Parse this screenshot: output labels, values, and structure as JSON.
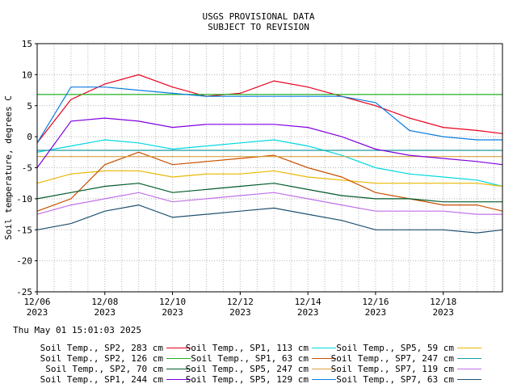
{
  "header": {
    "line1": "USGS PROVISIONAL DATA",
    "line2": "SUBJECT TO REVISION"
  },
  "timestamp": "Thu May 01 15:01:03 2025",
  "chart_data": {
    "type": "line",
    "ylabel": "Soil temperature, degrees C",
    "ylim": [
      -25,
      15
    ],
    "yticks": [
      -25,
      -20,
      -15,
      -10,
      -5,
      0,
      5,
      10,
      15
    ],
    "xlim": [
      "2023-12-06",
      "2023-12-19T18:00"
    ],
    "xticks": [
      {
        "date": "2023-12-06",
        "label1": "12/06",
        "label2": "2023"
      },
      {
        "date": "2023-12-08",
        "label1": "12/08",
        "label2": "2023"
      },
      {
        "date": "2023-12-10",
        "label1": "12/10",
        "label2": "2023"
      },
      {
        "date": "2023-12-12",
        "label1": "12/12",
        "label2": "2023"
      },
      {
        "date": "2023-12-14",
        "label1": "12/14",
        "label2": "2023"
      },
      {
        "date": "2023-12-16",
        "label1": "12/16",
        "label2": "2023"
      },
      {
        "date": "2023-12-18",
        "label1": "12/18",
        "label2": "2023"
      }
    ],
    "grid": true,
    "legend_position": "bottom",
    "series": [
      {
        "name": "Soil Temp., SP2, 283 cm",
        "color": "#e8001c",
        "x": [
          "2023-12-06",
          "2023-12-07",
          "2023-12-08",
          "2023-12-09",
          "2023-12-10",
          "2023-12-11",
          "2023-12-12",
          "2023-12-13",
          "2023-12-14",
          "2023-12-15",
          "2023-12-16",
          "2023-12-17",
          "2023-12-18",
          "2023-12-19",
          "2023-12-19T18:00"
        ],
        "values": [
          -1,
          6,
          8.5,
          10,
          8,
          6.5,
          7,
          9,
          8,
          6.5,
          5,
          3,
          1.5,
          1,
          0.5
        ]
      },
      {
        "name": "Soil Temp., SP1, 113 cm",
        "color": "#00d8e0",
        "x": [
          "2023-12-06",
          "2023-12-07",
          "2023-12-08",
          "2023-12-09",
          "2023-12-10",
          "2023-12-11",
          "2023-12-12",
          "2023-12-13",
          "2023-12-14",
          "2023-12-15",
          "2023-12-16",
          "2023-12-17",
          "2023-12-18",
          "2023-12-19",
          "2023-12-19T18:00"
        ],
        "values": [
          -2.5,
          -1.5,
          -0.5,
          -1,
          -2,
          -1.5,
          -1,
          -0.5,
          -1.5,
          -3,
          -5,
          -6,
          -6.5,
          -7,
          -8
        ]
      },
      {
        "name": "Soil Temp., SP5, 59 cm",
        "color": "#e8b800",
        "x": [
          "2023-12-06",
          "2023-12-07",
          "2023-12-08",
          "2023-12-09",
          "2023-12-10",
          "2023-12-11",
          "2023-12-12",
          "2023-12-13",
          "2023-12-14",
          "2023-12-15",
          "2023-12-16",
          "2023-12-17",
          "2023-12-18",
          "2023-12-19",
          "2023-12-19T18:00"
        ],
        "values": [
          -7.5,
          -6,
          -5.5,
          -5.5,
          -6.5,
          -6,
          -6,
          -5.5,
          -6.5,
          -7,
          -7.5,
          -7.5,
          -7.5,
          -7.5,
          -8
        ]
      },
      {
        "name": "Soil Temp., SP2, 126 cm",
        "color": "#20b020",
        "x": [
          "2023-12-06",
          "2023-12-19T18:00"
        ],
        "values": [
          6.8,
          6.8
        ]
      },
      {
        "name": "Soil Temp., SP1, 63 cm",
        "color": "#c85000",
        "x": [
          "2023-12-06",
          "2023-12-07",
          "2023-12-08",
          "2023-12-09",
          "2023-12-10",
          "2023-12-11",
          "2023-12-12",
          "2023-12-13",
          "2023-12-14",
          "2023-12-15",
          "2023-12-16",
          "2023-12-17",
          "2023-12-18",
          "2023-12-19",
          "2023-12-19T18:00"
        ],
        "values": [
          -12,
          -10,
          -4.5,
          -2.5,
          -4.5,
          -4,
          -3.5,
          -3,
          -5,
          -6.5,
          -9,
          -10,
          -11,
          -11,
          -12
        ]
      },
      {
        "name": "Soil Temp., SP7, 247 cm",
        "color": "#1a9aa0",
        "x": [
          "2023-12-06",
          "2023-12-19T18:00"
        ],
        "values": [
          -2.2,
          -2.2
        ]
      },
      {
        "name": "Soil Temp., SP2, 70 cm",
        "color": "#005a28",
        "x": [
          "2023-12-06",
          "2023-12-07",
          "2023-12-08",
          "2023-12-09",
          "2023-12-10",
          "2023-12-11",
          "2023-12-12",
          "2023-12-13",
          "2023-12-14",
          "2023-12-15",
          "2023-12-16",
          "2023-12-17",
          "2023-12-18",
          "2023-12-19",
          "2023-12-19T18:00"
        ],
        "values": [
          -10,
          -9,
          -8,
          -7.5,
          -9,
          -8.5,
          -8,
          -7.5,
          -8.5,
          -9.5,
          -10,
          -10,
          -10.5,
          -10.5,
          -10.5
        ]
      },
      {
        "name": "Soil Temp., SP5, 247 cm",
        "color": "#d8a040",
        "x": [
          "2023-12-06",
          "2023-12-19T18:00"
        ],
        "values": [
          -3.2,
          -3.2
        ]
      },
      {
        "name": "Soil Temp., SP7, 119 cm",
        "color": "#c070e8",
        "x": [
          "2023-12-06",
          "2023-12-07",
          "2023-12-08",
          "2023-12-09",
          "2023-12-10",
          "2023-12-11",
          "2023-12-12",
          "2023-12-13",
          "2023-12-14",
          "2023-12-15",
          "2023-12-16",
          "2023-12-17",
          "2023-12-18",
          "2023-12-19",
          "2023-12-19T18:00"
        ],
        "values": [
          -12.5,
          -11,
          -10,
          -9,
          -10.5,
          -10,
          -9.5,
          -9,
          -10,
          -11,
          -12,
          -12,
          -12,
          -12.5,
          -12.5
        ]
      },
      {
        "name": "Soil Temp., SP1, 244 cm",
        "color": "#8000e0",
        "x": [
          "2023-12-06",
          "2023-12-07",
          "2023-12-08",
          "2023-12-09",
          "2023-12-10",
          "2023-12-11",
          "2023-12-12",
          "2023-12-13",
          "2023-12-14",
          "2023-12-15",
          "2023-12-16",
          "2023-12-17",
          "2023-12-18",
          "2023-12-19",
          "2023-12-19T18:00"
        ],
        "values": [
          -5,
          2.5,
          3,
          2.5,
          1.5,
          2,
          2,
          2,
          1.5,
          0,
          -2,
          -3,
          -3.5,
          -4,
          -4.5
        ]
      },
      {
        "name": "Soil Temp., SP5, 129 cm",
        "color": "#0a7de0",
        "x": [
          "2023-12-06",
          "2023-12-07",
          "2023-12-08",
          "2023-12-09",
          "2023-12-10",
          "2023-12-11",
          "2023-12-12",
          "2023-12-13",
          "2023-12-14",
          "2023-12-15",
          "2023-12-16",
          "2023-12-17",
          "2023-12-18",
          "2023-12-19",
          "2023-12-19T18:00"
        ],
        "values": [
          -1,
          8,
          8,
          7.5,
          7,
          6.5,
          6.5,
          6.5,
          6.5,
          6.5,
          5.5,
          1,
          0,
          -0.5,
          -0.5
        ]
      },
      {
        "name": "Soil Temp., SP7, 63 cm",
        "color": "#1e5070",
        "x": [
          "2023-12-06",
          "2023-12-07",
          "2023-12-08",
          "2023-12-09",
          "2023-12-10",
          "2023-12-11",
          "2023-12-12",
          "2023-12-13",
          "2023-12-14",
          "2023-12-15",
          "2023-12-16",
          "2023-12-17",
          "2023-12-18",
          "2023-12-19",
          "2023-12-19T18:00"
        ],
        "values": [
          -15,
          -14,
          -12,
          -11,
          -13,
          -12.5,
          -12,
          -11.5,
          -12.5,
          -13.5,
          -15,
          -15,
          -15,
          -15.5,
          -15
        ]
      }
    ]
  }
}
